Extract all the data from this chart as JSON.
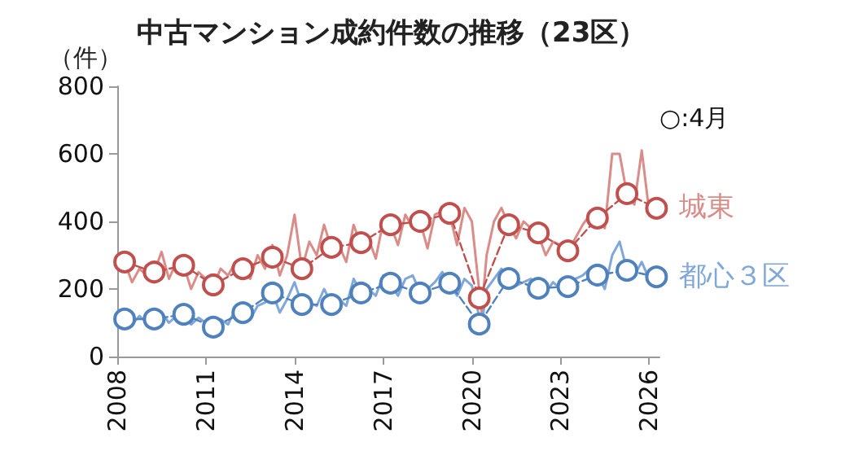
{
  "chart_data": {
    "type": "line",
    "title": "中古マンション成約件数の推移（23区）",
    "ylabel": "（件）",
    "annotations": [
      "○:4月"
    ],
    "xlim": [
      2008,
      2026.35
    ],
    "xticks": [
      2008,
      2011,
      2014,
      2017,
      2020,
      2023,
      2026
    ],
    "ylim": [
      0,
      800
    ],
    "yticks": [
      0,
      200,
      400,
      600,
      800
    ],
    "grid": false,
    "legend": false,
    "series": [
      {
        "name": "城東",
        "color": "#d98c88",
        "marker": "none",
        "line_style": "solid",
        "x": [
          2008,
          2008.25,
          2008.5,
          2008.75,
          2009,
          2009.25,
          2009.5,
          2009.75,
          2010,
          2010.25,
          2010.5,
          2010.75,
          2011,
          2011.25,
          2011.5,
          2011.75,
          2012,
          2012.25,
          2012.5,
          2012.75,
          2013,
          2013.25,
          2013.5,
          2013.75,
          2014,
          2014.25,
          2014.5,
          2014.75,
          2015,
          2015.25,
          2015.5,
          2015.75,
          2016,
          2016.25,
          2016.5,
          2016.75,
          2017,
          2017.25,
          2017.5,
          2017.75,
          2018,
          2018.25,
          2018.5,
          2018.75,
          2019,
          2019.25,
          2019.5,
          2019.75,
          2020,
          2020.33,
          2020.5,
          2020.75,
          2021,
          2021.25,
          2021.5,
          2021.75,
          2022,
          2022.25,
          2022.5,
          2022.75,
          2023,
          2023.25,
          2023.5,
          2023.75,
          2024,
          2024.25,
          2024.5,
          2024.75,
          2025,
          2025.25,
          2025.5,
          2025.75,
          2026,
          2026.25
        ],
        "values": [
          300,
          280,
          220,
          260,
          240,
          250,
          310,
          230,
          280,
          270,
          200,
          250,
          230,
          210,
          260,
          240,
          280,
          255,
          230,
          300,
          260,
          330,
          240,
          300,
          420,
          260,
          340,
          300,
          390,
          320,
          330,
          280,
          390,
          330,
          350,
          290,
          400,
          390,
          330,
          420,
          380,
          400,
          320,
          420,
          430,
          420,
          330,
          440,
          400,
          130,
          300,
          400,
          440,
          390,
          350,
          400,
          380,
          360,
          300,
          340,
          330,
          310,
          350,
          390,
          420,
          410,
          380,
          600,
          600,
          480,
          450,
          610,
          430,
          440
        ]
      },
      {
        "name": "都心３区",
        "color": "#7fa7da",
        "marker": "none",
        "line_style": "solid",
        "x": [
          2008,
          2008.25,
          2008.5,
          2008.75,
          2009,
          2009.25,
          2009.5,
          2009.75,
          2010,
          2010.25,
          2010.5,
          2010.75,
          2011,
          2011.25,
          2011.5,
          2011.75,
          2012,
          2012.25,
          2012.5,
          2012.75,
          2013,
          2013.25,
          2013.5,
          2013.75,
          2014,
          2014.25,
          2014.5,
          2014.75,
          2015,
          2015.25,
          2015.5,
          2015.75,
          2016,
          2016.25,
          2016.5,
          2016.75,
          2017,
          2017.25,
          2017.5,
          2017.75,
          2018,
          2018.25,
          2018.5,
          2018.75,
          2019,
          2019.25,
          2019.5,
          2019.75,
          2020,
          2020.33,
          2020.5,
          2020.75,
          2021,
          2021.25,
          2021.5,
          2021.75,
          2022,
          2022.25,
          2022.5,
          2022.75,
          2023,
          2023.25,
          2023.5,
          2023.75,
          2024,
          2024.25,
          2024.5,
          2024.75,
          2025,
          2025.25,
          2025.5,
          2025.75,
          2026,
          2026.25
        ],
        "values": [
          110,
          105,
          95,
          120,
          100,
          110,
          130,
          100,
          120,
          125,
          95,
          115,
          100,
          90,
          110,
          95,
          140,
          130,
          110,
          150,
          160,
          190,
          130,
          170,
          220,
          155,
          160,
          150,
          200,
          155,
          170,
          150,
          230,
          190,
          200,
          180,
          240,
          215,
          180,
          230,
          240,
          190,
          200,
          220,
          250,
          215,
          180,
          230,
          210,
          90,
          200,
          230,
          260,
          230,
          210,
          220,
          230,
          200,
          190,
          220,
          200,
          205,
          230,
          240,
          260,
          240,
          200,
          300,
          340,
          255,
          240,
          280,
          230,
          236
        ]
      },
      {
        "color": "#c0504d",
        "marker": "circle",
        "line_style": "dashed",
        "x": [
          2008.25,
          2009.25,
          2010.25,
          2011.25,
          2012.25,
          2013.25,
          2014.25,
          2015.25,
          2016.25,
          2017.25,
          2018.25,
          2019.25,
          2020.25,
          2021.25,
          2022.25,
          2023.25,
          2024.25,
          2025.25,
          2026.25
        ],
        "values": [
          280,
          250,
          270,
          212,
          260,
          294,
          260,
          323,
          337,
          390,
          400,
          424,
          173,
          390,
          366,
          313,
          410,
          482,
          439
        ]
      },
      {
        "color": "#4f81bd",
        "marker": "circle",
        "line_style": "dashed",
        "x": [
          2008.25,
          2009.25,
          2010.25,
          2011.25,
          2012.25,
          2013.25,
          2014.25,
          2015.25,
          2016.25,
          2017.25,
          2018.25,
          2019.25,
          2020.25,
          2021.25,
          2022.25,
          2023.25,
          2024.25,
          2025.25,
          2026.25
        ],
        "values": [
          111,
          111,
          125,
          87,
          130,
          188,
          154,
          154,
          188,
          217,
          188,
          217,
          96,
          231,
          202,
          207,
          241,
          255,
          236
        ]
      }
    ]
  }
}
